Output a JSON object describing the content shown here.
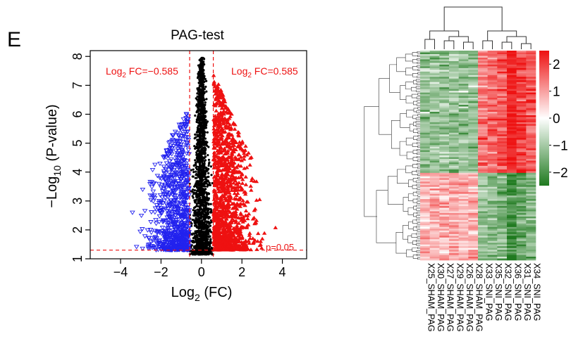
{
  "panel_letter": "E",
  "chart_data": [
    {
      "type": "scatter",
      "title": "PAG-test",
      "xlabel_base": "Log",
      "xlabel_sub": "2",
      "xlabel_rest": " (FC)",
      "ylabel_base": "−Log",
      "ylabel_sub": "10",
      "ylabel_rest": " (P-value)",
      "xlim": [
        -5.5,
        5.2
      ],
      "ylim": [
        1.0,
        8.2
      ],
      "xticks": [
        -4,
        -2,
        0,
        2,
        4
      ],
      "xtick_labels": [
        "−4",
        "−2",
        "0",
        "2",
        "4"
      ],
      "yticks": [
        1,
        2,
        3,
        4,
        5,
        6,
        7,
        8
      ],
      "ytick_labels": [
        "1",
        "2",
        "3",
        "4",
        "5",
        "6",
        "7",
        "8"
      ],
      "vlines": [
        -0.585,
        0.585
      ],
      "hline": 1.3,
      "annotations": {
        "left_fc": {
          "base": "Log",
          "sub": "2",
          "rest": " FC=−0.585"
        },
        "right_fc": {
          "base": "Log",
          "sub": "2",
          "rest": " FC=0.585"
        },
        "p_value": "p=0.05"
      },
      "series_colors": {
        "down": "#2222ee",
        "neutral": "#000000",
        "up": "#ee1111"
      },
      "line_color": "#ee1111"
    },
    {
      "type": "heatmap",
      "columns": [
        "X25_SHAM_PAG",
        "X30_SHAM_PAG",
        "X27_SHAM_PAG",
        "X29_SHAM_PAG",
        "X26_SHAM_PAG",
        "X28_SHAM_PAG",
        "X33_SNI_PAG",
        "X35_SNI_PAG",
        "X32_SNI_PAG",
        "X36_SNI_PAG",
        "X31_SNI_PAG",
        "X34_SNI_PAG"
      ],
      "colorbar_ticks": [
        2,
        1,
        0,
        -1,
        -2
      ],
      "colorbar_labels": [
        "2",
        "1",
        "0",
        "−1",
        "−2"
      ],
      "colorbar_range": [
        -2.5,
        2.5
      ],
      "colors": {
        "high": "#ee1111",
        "mid": "#ffffff",
        "low": "#1f7a1f"
      }
    }
  ]
}
